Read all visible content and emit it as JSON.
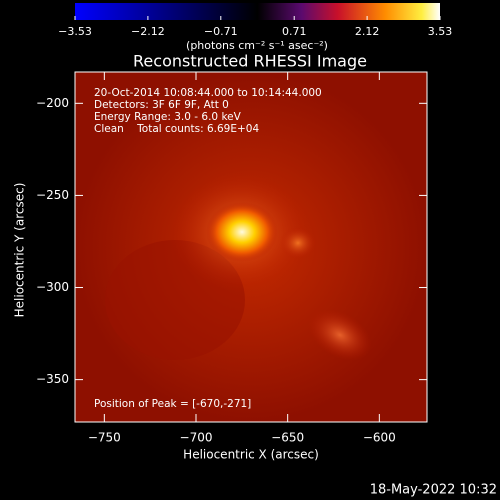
{
  "chart_data": {
    "type": "image",
    "title": "Reconstructed RHESSI Image",
    "colorbar": {
      "label": "(photons cm⁻² s⁻¹ asec⁻²)",
      "lim": [
        -3.53,
        3.53
      ],
      "ticks": [
        {
          "value": -3.53,
          "label": "−3.53"
        },
        {
          "value": -2.12,
          "label": "−2.12"
        },
        {
          "value": -0.71,
          "label": "−0.71"
        },
        0.71,
        2.12,
        3.53
      ]
    },
    "annotations": [
      "20-Oct-2014 10:08:44.000 to 10:14:44.000",
      "Detectors: 3F 6F 9F, Att 0",
      "Energy Range: 3.0 - 6.0 keV",
      "Clean    Total counts: 6.69E+04"
    ],
    "peak_label": "Position of Peak = [-670,-271]",
    "x_label": "Heliocentric X (arcsec)",
    "y_label": "Heliocentric Y (arcsec)",
    "xlim": [
      -766,
      -574
    ],
    "ylim": [
      -373,
      -183
    ],
    "xticks": [
      {
        "value": -750,
        "label": "−750"
      },
      {
        "value": -700,
        "label": "−700"
      },
      {
        "value": -650,
        "label": "−650"
      },
      {
        "value": -600,
        "label": "−600"
      }
    ],
    "yticks": [
      {
        "value": -200,
        "label": "−200"
      },
      {
        "value": -250,
        "label": "−250"
      },
      {
        "value": -300,
        "label": "−300"
      },
      {
        "value": -350,
        "label": "−350"
      }
    ],
    "footer": "18-May-2022 10:32"
  }
}
